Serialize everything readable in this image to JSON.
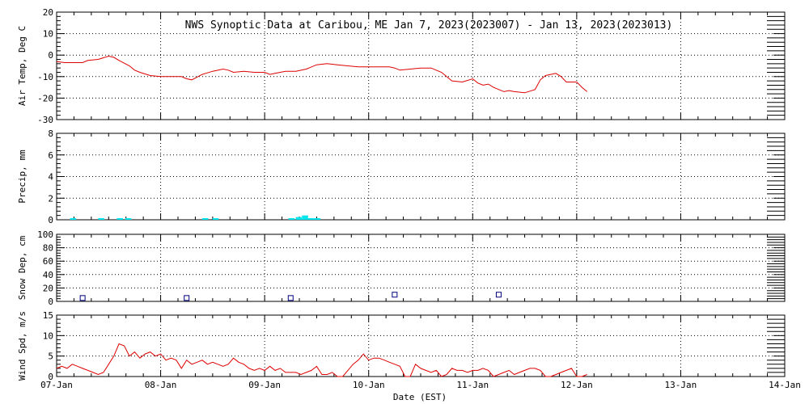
{
  "chart_data": [
    {
      "type": "line",
      "title": "NWS Synoptic Data at Caribou, ME   Jan  7, 2023(2023007) - Jan 13, 2023(2023013)",
      "ylabel": "Air Temp, Deg C",
      "ylim": [
        -30,
        20
      ],
      "yticks": [
        -30,
        -20,
        -10,
        0,
        10,
        20
      ],
      "grid": true,
      "color": "#dd0000",
      "series": [
        {
          "x": [
            0.0,
            0.08,
            0.15,
            0.25,
            0.3,
            0.4,
            0.5,
            0.55,
            0.6,
            0.7,
            0.75,
            0.8,
            0.9,
            1.0,
            1.15,
            1.2,
            1.25,
            1.3,
            1.4,
            1.5,
            1.6,
            1.65,
            1.7,
            1.8,
            1.9,
            2.0,
            2.05,
            2.1,
            2.2,
            2.3,
            2.4,
            2.5,
            2.6,
            2.7,
            2.8,
            2.9,
            3.0,
            3.1,
            3.2,
            3.25,
            3.3,
            3.4,
            3.5,
            3.6,
            3.7,
            3.75,
            3.8,
            3.9,
            4.0,
            4.05,
            4.1,
            4.15,
            4.2,
            4.3,
            4.35,
            4.4,
            4.5,
            4.6,
            4.65,
            4.7,
            4.8,
            4.85,
            4.9,
            5.0,
            5.05,
            5.1
          ],
          "y": [
            -3,
            -3.5,
            -3.5,
            -3.5,
            -2.5,
            -2,
            -0.5,
            -1,
            -2.5,
            -5,
            -7,
            -8,
            -9.5,
            -10,
            -10,
            -10,
            -11,
            -11.5,
            -9,
            -7.5,
            -6.5,
            -7,
            -8,
            -7.5,
            -8,
            -8,
            -9,
            -8.5,
            -7.5,
            -7.5,
            -6.5,
            -4.5,
            -4,
            -4.5,
            -5,
            -5.5,
            -5.5,
            -5.5,
            -5.5,
            -6,
            -7,
            -6.5,
            -6,
            -6,
            -8,
            -10,
            -12,
            -12.5,
            -11,
            -13,
            -14,
            -13.5,
            -15,
            -17,
            -16.5,
            -17,
            -17.5,
            -16,
            -11.5,
            -9.5,
            -8.5,
            -10,
            -12.5,
            -12.5,
            -15,
            -17
          ]
        }
      ]
    },
    {
      "type": "bar",
      "ylabel": "Precip, mm",
      "ylim": [
        0,
        8
      ],
      "yticks": [
        0,
        2,
        4,
        6,
        8
      ],
      "grid": true,
      "color": "#00e5ee",
      "x": [
        0.15,
        0.42,
        0.6,
        0.68,
        1.42,
        1.52,
        2.25,
        2.32,
        2.38,
        2.44,
        2.5
      ],
      "values": [
        0.1,
        0.1,
        0.1,
        0.1,
        0.1,
        0.1,
        0.1,
        0.25,
        0.4,
        0.15,
        0.1
      ]
    },
    {
      "type": "scatter",
      "ylabel": "Snow Dep, cm",
      "ylim": [
        0,
        100
      ],
      "yticks": [
        0,
        20,
        40,
        60,
        80,
        100
      ],
      "grid": true,
      "color": "#000080",
      "x": [
        0.25,
        1.25,
        2.25,
        3.25,
        4.25
      ],
      "values": [
        5,
        5,
        5,
        10,
        10
      ]
    },
    {
      "type": "line",
      "ylabel": "Wind Spd, m/s",
      "ylim": [
        0,
        15
      ],
      "yticks": [
        0,
        5,
        10,
        15
      ],
      "grid": true,
      "color": "#dd0000",
      "xlabel": "Date (EST)",
      "xticks": [
        "07-Jan",
        "08-Jan",
        "09-Jan",
        "10-Jan",
        "11-Jan",
        "12-Jan",
        "13-Jan",
        "14-Jan"
      ],
      "series": [
        {
          "x": [
            0.0,
            0.05,
            0.1,
            0.15,
            0.2,
            0.25,
            0.3,
            0.35,
            0.4,
            0.45,
            0.5,
            0.55,
            0.6,
            0.65,
            0.7,
            0.75,
            0.8,
            0.85,
            0.9,
            0.95,
            1.0,
            1.05,
            1.1,
            1.15,
            1.2,
            1.25,
            1.3,
            1.35,
            1.4,
            1.45,
            1.5,
            1.55,
            1.6,
            1.65,
            1.7,
            1.75,
            1.8,
            1.85,
            1.9,
            1.95,
            2.0,
            2.05,
            2.1,
            2.15,
            2.2,
            2.25,
            2.3,
            2.35,
            2.4,
            2.45,
            2.5,
            2.55,
            2.6,
            2.65,
            2.7,
            2.75,
            2.8,
            2.85,
            2.9,
            2.95,
            3.0,
            3.05,
            3.1,
            3.15,
            3.2,
            3.25,
            3.3,
            3.35,
            3.4,
            3.45,
            3.5,
            3.55,
            3.6,
            3.65,
            3.7,
            3.75,
            3.8,
            3.85,
            3.9,
            3.95,
            4.0,
            4.05,
            4.1,
            4.15,
            4.2,
            4.25,
            4.3,
            4.35,
            4.4,
            4.45,
            4.5,
            4.55,
            4.6,
            4.65,
            4.7,
            4.75,
            4.8,
            4.85,
            4.9,
            4.95,
            5.0,
            5.05,
            5.1
          ],
          "y": [
            2,
            2.5,
            2,
            3,
            2.5,
            2,
            1.5,
            1,
            0.5,
            1,
            3,
            5,
            8,
            7.5,
            5,
            6,
            4.5,
            5.5,
            6,
            5,
            5.5,
            4,
            4.5,
            4,
            2,
            4,
            3,
            3.5,
            4,
            3,
            3.5,
            3,
            2.5,
            3,
            4.5,
            3.5,
            3,
            2,
            1.5,
            2,
            1.5,
            2.5,
            1.5,
            2,
            1,
            1,
            1,
            0.5,
            1,
            1.5,
            2.5,
            0.5,
            0.5,
            1,
            0,
            0,
            1.5,
            3,
            4,
            5.5,
            4,
            4.5,
            4.5,
            4,
            3.5,
            3,
            2.5,
            0,
            0,
            3,
            2,
            1.5,
            1,
            1.5,
            0,
            0.5,
            2,
            1.5,
            1.5,
            1,
            1.5,
            1.5,
            2,
            1.5,
            0,
            0.5,
            1,
            1.5,
            0.5,
            1,
            1.5,
            2,
            2,
            1.5,
            0,
            0,
            0.5,
            1,
            1.5,
            2,
            0,
            0,
            0.5
          ]
        }
      ]
    }
  ]
}
